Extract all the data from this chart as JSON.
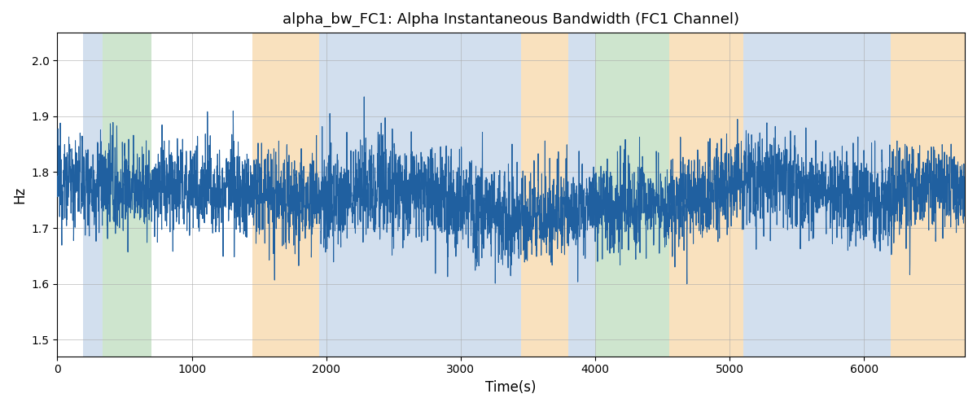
{
  "title": "alpha_bw_FC1: Alpha Instantaneous Bandwidth (FC1 Channel)",
  "xlabel": "Time(s)",
  "ylabel": "Hz",
  "xlim": [
    0,
    6750
  ],
  "ylim": [
    1.47,
    2.05
  ],
  "yticks": [
    1.5,
    1.6,
    1.7,
    1.8,
    1.9,
    2.0
  ],
  "xticks": [
    0,
    1000,
    2000,
    3000,
    4000,
    5000,
    6000
  ],
  "line_color": "#2060a0",
  "line_width": 0.75,
  "bg_color": "#ffffff",
  "grid_color": "#aaaaaa",
  "bands": [
    {
      "xmin": 190,
      "xmax": 335,
      "color": "#aec6e0",
      "alpha": 0.55
    },
    {
      "xmin": 335,
      "xmax": 700,
      "color": "#9ecc9e",
      "alpha": 0.5
    },
    {
      "xmin": 1450,
      "xmax": 1950,
      "color": "#f5c98a",
      "alpha": 0.55
    },
    {
      "xmin": 1950,
      "xmax": 3450,
      "color": "#aec6e0",
      "alpha": 0.55
    },
    {
      "xmin": 3450,
      "xmax": 3800,
      "color": "#f5c98a",
      "alpha": 0.55
    },
    {
      "xmin": 3800,
      "xmax": 4000,
      "color": "#aec6e0",
      "alpha": 0.55
    },
    {
      "xmin": 4000,
      "xmax": 4550,
      "color": "#9ecc9e",
      "alpha": 0.5
    },
    {
      "xmin": 4550,
      "xmax": 5100,
      "color": "#f5c98a",
      "alpha": 0.55
    },
    {
      "xmin": 5100,
      "xmax": 6200,
      "color": "#aec6e0",
      "alpha": 0.55
    },
    {
      "xmin": 6200,
      "xmax": 6800,
      "color": "#f5c98a",
      "alpha": 0.55
    }
  ],
  "seed": 12345,
  "n_points": 6700,
  "mean": 1.755,
  "noise_std": 0.055,
  "spike_prob": 0.005,
  "spike_amp": 0.14
}
